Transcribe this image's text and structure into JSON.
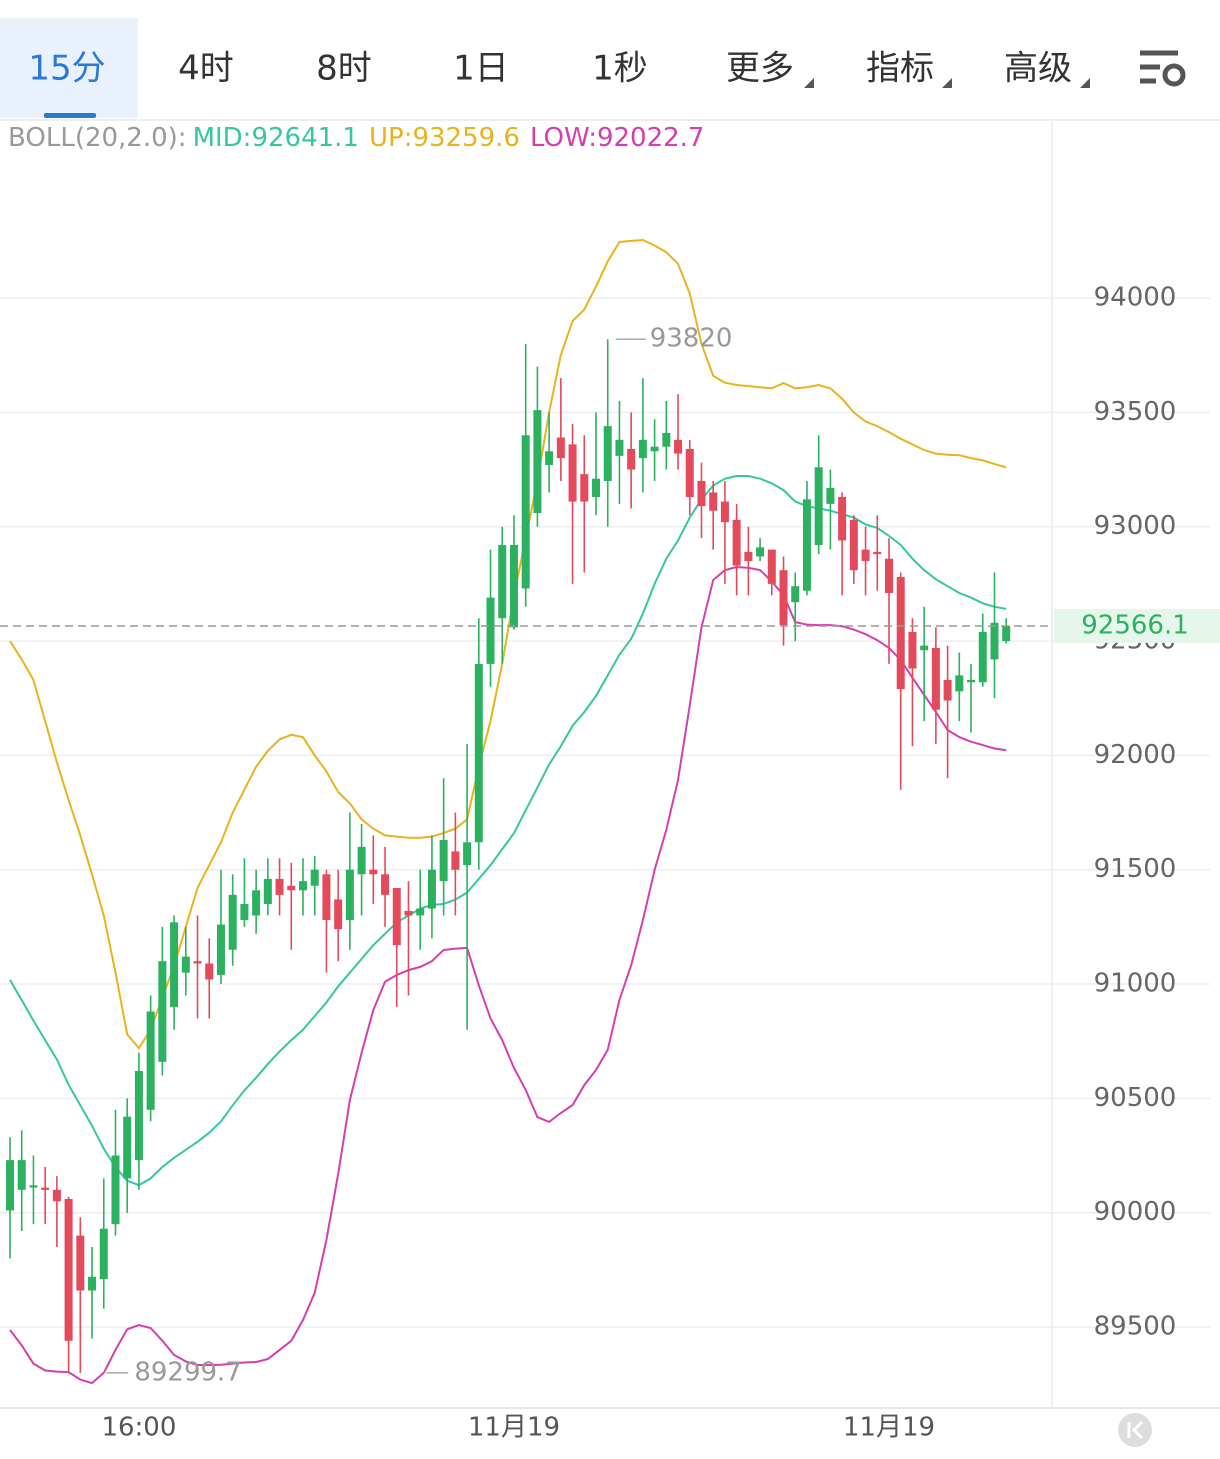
{
  "tabs": [
    "15分",
    "4时",
    "8时",
    "1日",
    "1秒",
    "更多",
    "指标",
    "高级"
  ],
  "chart_data": {
    "type": "candlestick",
    "indicator_label": "BOLL(20,2.0):",
    "categories": [
      null,
      null,
      null,
      null,
      null,
      null,
      null,
      null,
      null,
      null,
      null,
      "16:00",
      null,
      null,
      null,
      null,
      null,
      null,
      null,
      null,
      null,
      null,
      null,
      null,
      null,
      null,
      null,
      null,
      null,
      null,
      null,
      null,
      null,
      null,
      null,
      null,
      null,
      null,
      null,
      null,
      null,
      null,
      null,
      "11月19",
      null,
      null,
      null,
      null,
      null,
      null,
      null,
      null,
      null,
      null,
      null,
      null,
      null,
      null,
      null,
      null,
      null,
      null,
      null,
      null,
      null,
      null,
      null,
      null,
      null,
      null,
      null,
      null,
      null,
      null,
      null,
      "11月19",
      null,
      null,
      null,
      null,
      null,
      null,
      null,
      null,
      null,
      null
    ],
    "up_color": "#2bb160",
    "down_color": "#e34a5b",
    "open": [
      90010,
      90100,
      90110,
      90110,
      90100,
      90060,
      89900,
      89660,
      89710,
      89950,
      90150,
      90230,
      90450,
      90660,
      90900,
      91050,
      91100,
      91090,
      91040,
      91150,
      91280,
      91300,
      91350,
      91460,
      91430,
      91410,
      91430,
      91480,
      91370,
      91280,
      91480,
      91500,
      91480,
      91420,
      91320,
      91300,
      91330,
      91450,
      91580,
      91520,
      91620,
      92400,
      92600,
      92560,
      92730,
      93060,
      93270,
      93390,
      93360,
      93230,
      93130,
      93200,
      93310,
      93340,
      93300,
      93330,
      93350,
      93380,
      93340,
      93200,
      93150,
      93110,
      93030,
      92890,
      92870,
      92900,
      92810,
      92670,
      92720,
      92920,
      93100,
      93130,
      93030,
      92900,
      92890,
      92860,
      92780,
      92540,
      92460,
      92470,
      92330,
      92280,
      92320,
      92320,
      92420,
      92500
    ],
    "high": [
      90330,
      90360,
      90250,
      90200,
      90160,
      90070,
      89980,
      89850,
      90150,
      90450,
      90500,
      90700,
      90950,
      91250,
      91300,
      91250,
      91300,
      91200,
      91500,
      91480,
      91550,
      91500,
      91550,
      91550,
      91530,
      91550,
      91560,
      91500,
      91500,
      91750,
      91700,
      91650,
      91600,
      91420,
      91450,
      91500,
      91650,
      91900,
      91750,
      92050,
      92600,
      92900,
      93000,
      93050,
      93799.1,
      93700,
      93500,
      93650,
      93450,
      93400,
      93500,
      93820,
      93550,
      93500,
      93650,
      93470,
      93550,
      93580,
      93380,
      93280,
      93200,
      93200,
      93100,
      93000,
      92950,
      92900,
      92870,
      92800,
      93200,
      93400,
      93250,
      93150,
      93050,
      93000,
      93050,
      92950,
      92800,
      92600,
      92650,
      92560,
      92480,
      92450,
      92400,
      92620,
      92800,
      92600
    ],
    "low": [
      89800,
      89920,
      89950,
      89950,
      89850,
      89300,
      89299.7,
      89450,
      89580,
      89900,
      90000,
      90100,
      90400,
      90600,
      90800,
      90950,
      90850,
      90850,
      91000,
      91080,
      91250,
      91220,
      91300,
      91300,
      91150,
      91300,
      91300,
      91050,
      91100,
      91150,
      91300,
      91350,
      91250,
      90900,
      90950,
      91150,
      91200,
      91300,
      91300,
      90800,
      91500,
      92300,
      92400,
      92550,
      92650,
      93000,
      93150,
      93200,
      92750,
      92800,
      93050,
      93000,
      93100,
      93080,
      93150,
      93200,
      93250,
      93250,
      93050,
      92950,
      92900,
      92750,
      92700,
      92700,
      92850,
      92700,
      92480,
      92500,
      92700,
      92880,
      92900,
      92700,
      92750,
      92700,
      92720,
      92400,
      91850,
      92040,
      92150,
      92050,
      91900,
      92150,
      92100,
      92300,
      92250,
      92490
    ],
    "close": [
      90230,
      90230,
      90120,
      90100,
      90050,
      89440,
      89660,
      89720,
      89930,
      90250,
      90420,
      90620,
      90880,
      91100,
      91270,
      91120,
      91090,
      91020,
      91260,
      91390,
      91350,
      91410,
      91460,
      91390,
      91410,
      91450,
      91500,
      91280,
      91240,
      91500,
      91600,
      91480,
      91390,
      91170,
      91300,
      91330,
      91500,
      91630,
      91500,
      91620,
      92400,
      92690,
      92920,
      92920,
      93400,
      93510,
      93330,
      93300,
      93110,
      93110,
      93210,
      93440,
      93380,
      93250,
      93380,
      93350,
      93410,
      93320,
      93130,
      93090,
      93070,
      93020,
      92830,
      92850,
      92910,
      92750,
      92570,
      92740,
      93120,
      93260,
      93170,
      92940,
      92810,
      92850,
      92880,
      92710,
      92290,
      92380,
      92480,
      92200,
      92240,
      92350,
      92330,
      92540,
      92580,
      92566.1
    ],
    "overlays": [
      {
        "name": "MID:",
        "color": "#35c6a3",
        "values": [
          91018,
          90930,
          90840,
          90755,
          90670,
          90560,
          90470,
          90380,
          90280,
          90200,
          90140,
          90121,
          90150,
          90200,
          90240,
          90275,
          90310,
          90350,
          90400,
          90470,
          90535,
          90590,
          90650,
          90705,
          90755,
          90800,
          90860,
          90920,
          90990,
          91050,
          91110,
          91170,
          91220,
          91270,
          91300,
          91330,
          91346,
          91350,
          91370,
          91400,
          91460,
          91520,
          91590,
          91660,
          91760,
          91860,
          91960,
          92040,
          92130,
          92190,
          92260,
          92350,
          92440,
          92510,
          92620,
          92750,
          92860,
          92940,
          93040,
          93120,
          93180,
          93210,
          93222,
          93222,
          93210,
          93190,
          93160,
          93110,
          93090,
          93080,
          93070,
          93055,
          93040,
          93010,
          92995,
          92960,
          92920,
          92860,
          92810,
          92770,
          92740,
          92710,
          92690,
          92665,
          92650,
          92641.1
        ]
      },
      {
        "name": "UP:",
        "color": "#e8b31e",
        "values": [
          92500,
          92420,
          92330,
          92150,
          91970,
          91805,
          91650,
          91480,
          91300,
          91050,
          90780,
          90720,
          90800,
          90940,
          91080,
          91250,
          91420,
          91520,
          91620,
          91750,
          91850,
          91950,
          92020,
          92070,
          92090,
          92080,
          92000,
          91930,
          91840,
          91790,
          91720,
          91680,
          91650,
          91645,
          91640,
          91640,
          91645,
          91660,
          91680,
          91720,
          91950,
          92150,
          92400,
          92700,
          92950,
          93200,
          93500,
          93750,
          93900,
          93950,
          94050,
          94160,
          94245,
          94250,
          94254,
          94230,
          94200,
          94150,
          94020,
          93800,
          93660,
          93630,
          93620,
          93615,
          93610,
          93605,
          93628,
          93605,
          93610,
          93620,
          93605,
          93560,
          93500,
          93460,
          93440,
          93414,
          93385,
          93360,
          93335,
          93320,
          93315,
          93313,
          93300,
          93290,
          93275,
          93259.6
        ]
      },
      {
        "name": "LOW:",
        "color": "#d43fae",
        "values": [
          89487,
          89420,
          89340,
          89310,
          89305,
          89303,
          89270,
          89255,
          89300,
          89400,
          89490,
          89509,
          89496,
          89440,
          89378,
          89350,
          89334,
          89334,
          89335,
          89340,
          89345,
          89347,
          89360,
          89400,
          89440,
          89531,
          89650,
          89881,
          90170,
          90493,
          90700,
          90886,
          91010,
          91040,
          91061,
          91075,
          91100,
          91149,
          91155,
          91158,
          90995,
          90850,
          90755,
          90633,
          90537,
          90418,
          90397,
          90436,
          90471,
          90558,
          90624,
          90712,
          90930,
          91083,
          91280,
          91499,
          91674,
          91892,
          92220,
          92560,
          92767,
          92810,
          92824,
          92820,
          92811,
          92760,
          92701,
          92583,
          92572,
          92570,
          92570,
          92565,
          92550,
          92530,
          92504,
          92470,
          92417,
          92340,
          92264,
          92190,
          92111,
          92080,
          92060,
          92045,
          92030,
          92022.7
        ]
      }
    ],
    "ylim": [
      89146,
      94770
    ],
    "yticks": [
      89500,
      90000,
      90500,
      91000,
      91500,
      92000,
      92500,
      93000,
      93500,
      94000
    ],
    "grid": true
  }
}
